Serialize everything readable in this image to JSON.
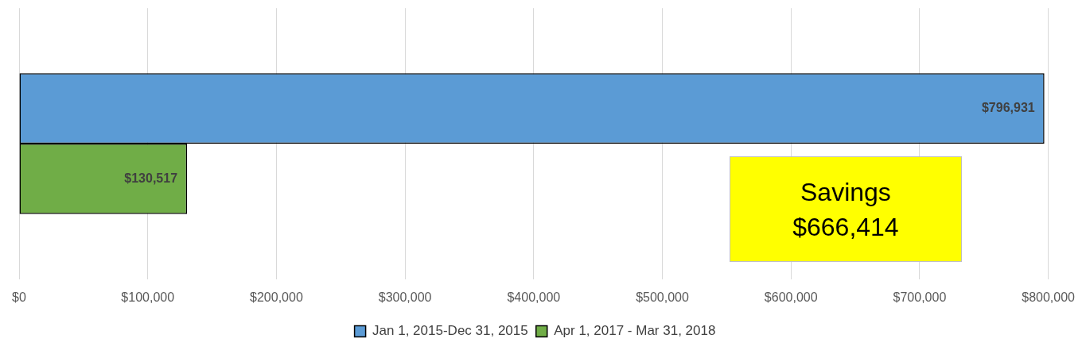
{
  "chart_data": {
    "type": "bar",
    "orientation": "horizontal",
    "categories": [
      null
    ],
    "series": [
      {
        "name": "Jan 1, 2015-Dec 31, 2015",
        "color": "#5b9bd5",
        "values": [
          796931
        ],
        "value_labels": [
          "$796,931"
        ]
      },
      {
        "name": "Apr 1, 2017 - Mar 31, 2018",
        "color": "#70ad47",
        "values": [
          130517
        ],
        "value_labels": [
          "$130,517"
        ]
      }
    ],
    "xlim": [
      0,
      800000
    ],
    "xticks": [
      {
        "value": 0,
        "label": "$0"
      },
      {
        "value": 100000,
        "label": "$100,000"
      },
      {
        "value": 200000,
        "label": "$200,000"
      },
      {
        "value": 300000,
        "label": "$300,000"
      },
      {
        "value": 400000,
        "label": "$400,000"
      },
      {
        "value": 500000,
        "label": "$500,000"
      },
      {
        "value": 600000,
        "label": "$600,000"
      },
      {
        "value": 700000,
        "label": "$700,000"
      },
      {
        "value": 800000,
        "label": "$800,000"
      }
    ],
    "grid": "x",
    "legend": "bottom",
    "annotations": [
      "Savings\n$666,414"
    ]
  }
}
